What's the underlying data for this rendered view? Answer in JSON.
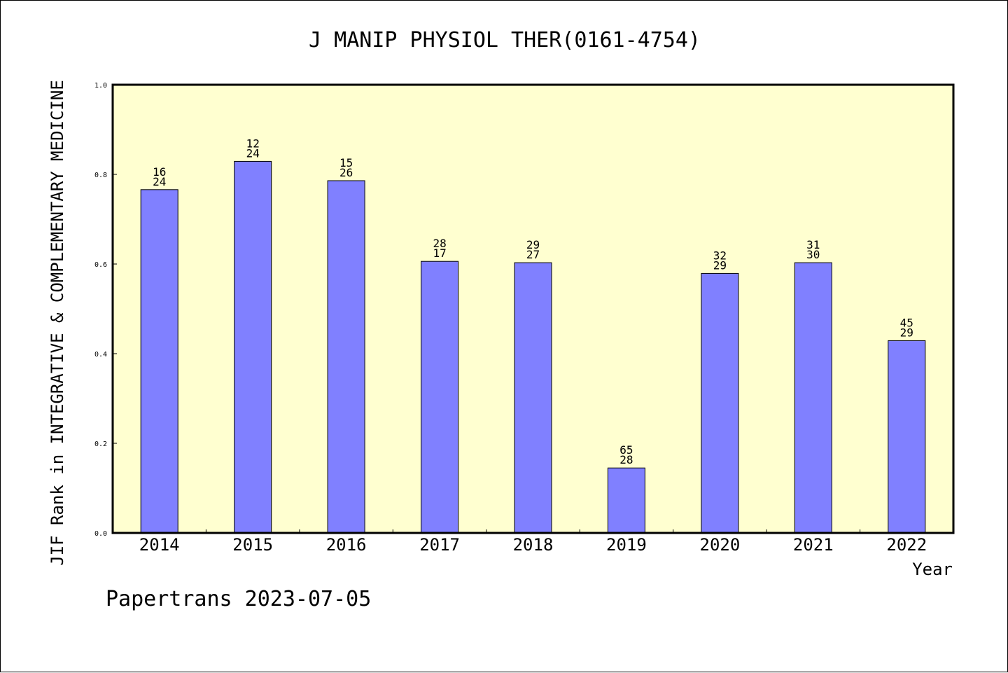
{
  "chart_data": {
    "type": "bar",
    "title": "J MANIP PHYSIOL THER(0161-4754)",
    "xlabel": "Year",
    "ylabel": "JIF Rank in INTEGRATIVE & COMPLEMENTARY MEDICINE",
    "ylim": [
      0,
      1.0
    ],
    "yticks": [
      "0.0",
      "0.2",
      "0.4",
      "0.6",
      "0.8",
      "1.0"
    ],
    "categories": [
      "2014",
      "2015",
      "2016",
      "2017",
      "2018",
      "2019",
      "2020",
      "2021",
      "2022"
    ],
    "values": [
      0.766,
      0.829,
      0.786,
      0.606,
      0.603,
      0.145,
      0.579,
      0.603,
      0.429
    ],
    "labels_top": [
      "16",
      "12",
      "15",
      "28",
      "29",
      "65",
      "32",
      "31",
      "45"
    ],
    "labels_bottom": [
      "24",
      "24",
      "26",
      "17",
      "27",
      "28",
      "29",
      "30",
      "29"
    ],
    "grid": false,
    "colors": {
      "plot_background": "#ffffd0",
      "bar_fill": "#8080ff",
      "bar_stroke": "#000000"
    }
  },
  "footer": "Papertrans 2023-07-05"
}
